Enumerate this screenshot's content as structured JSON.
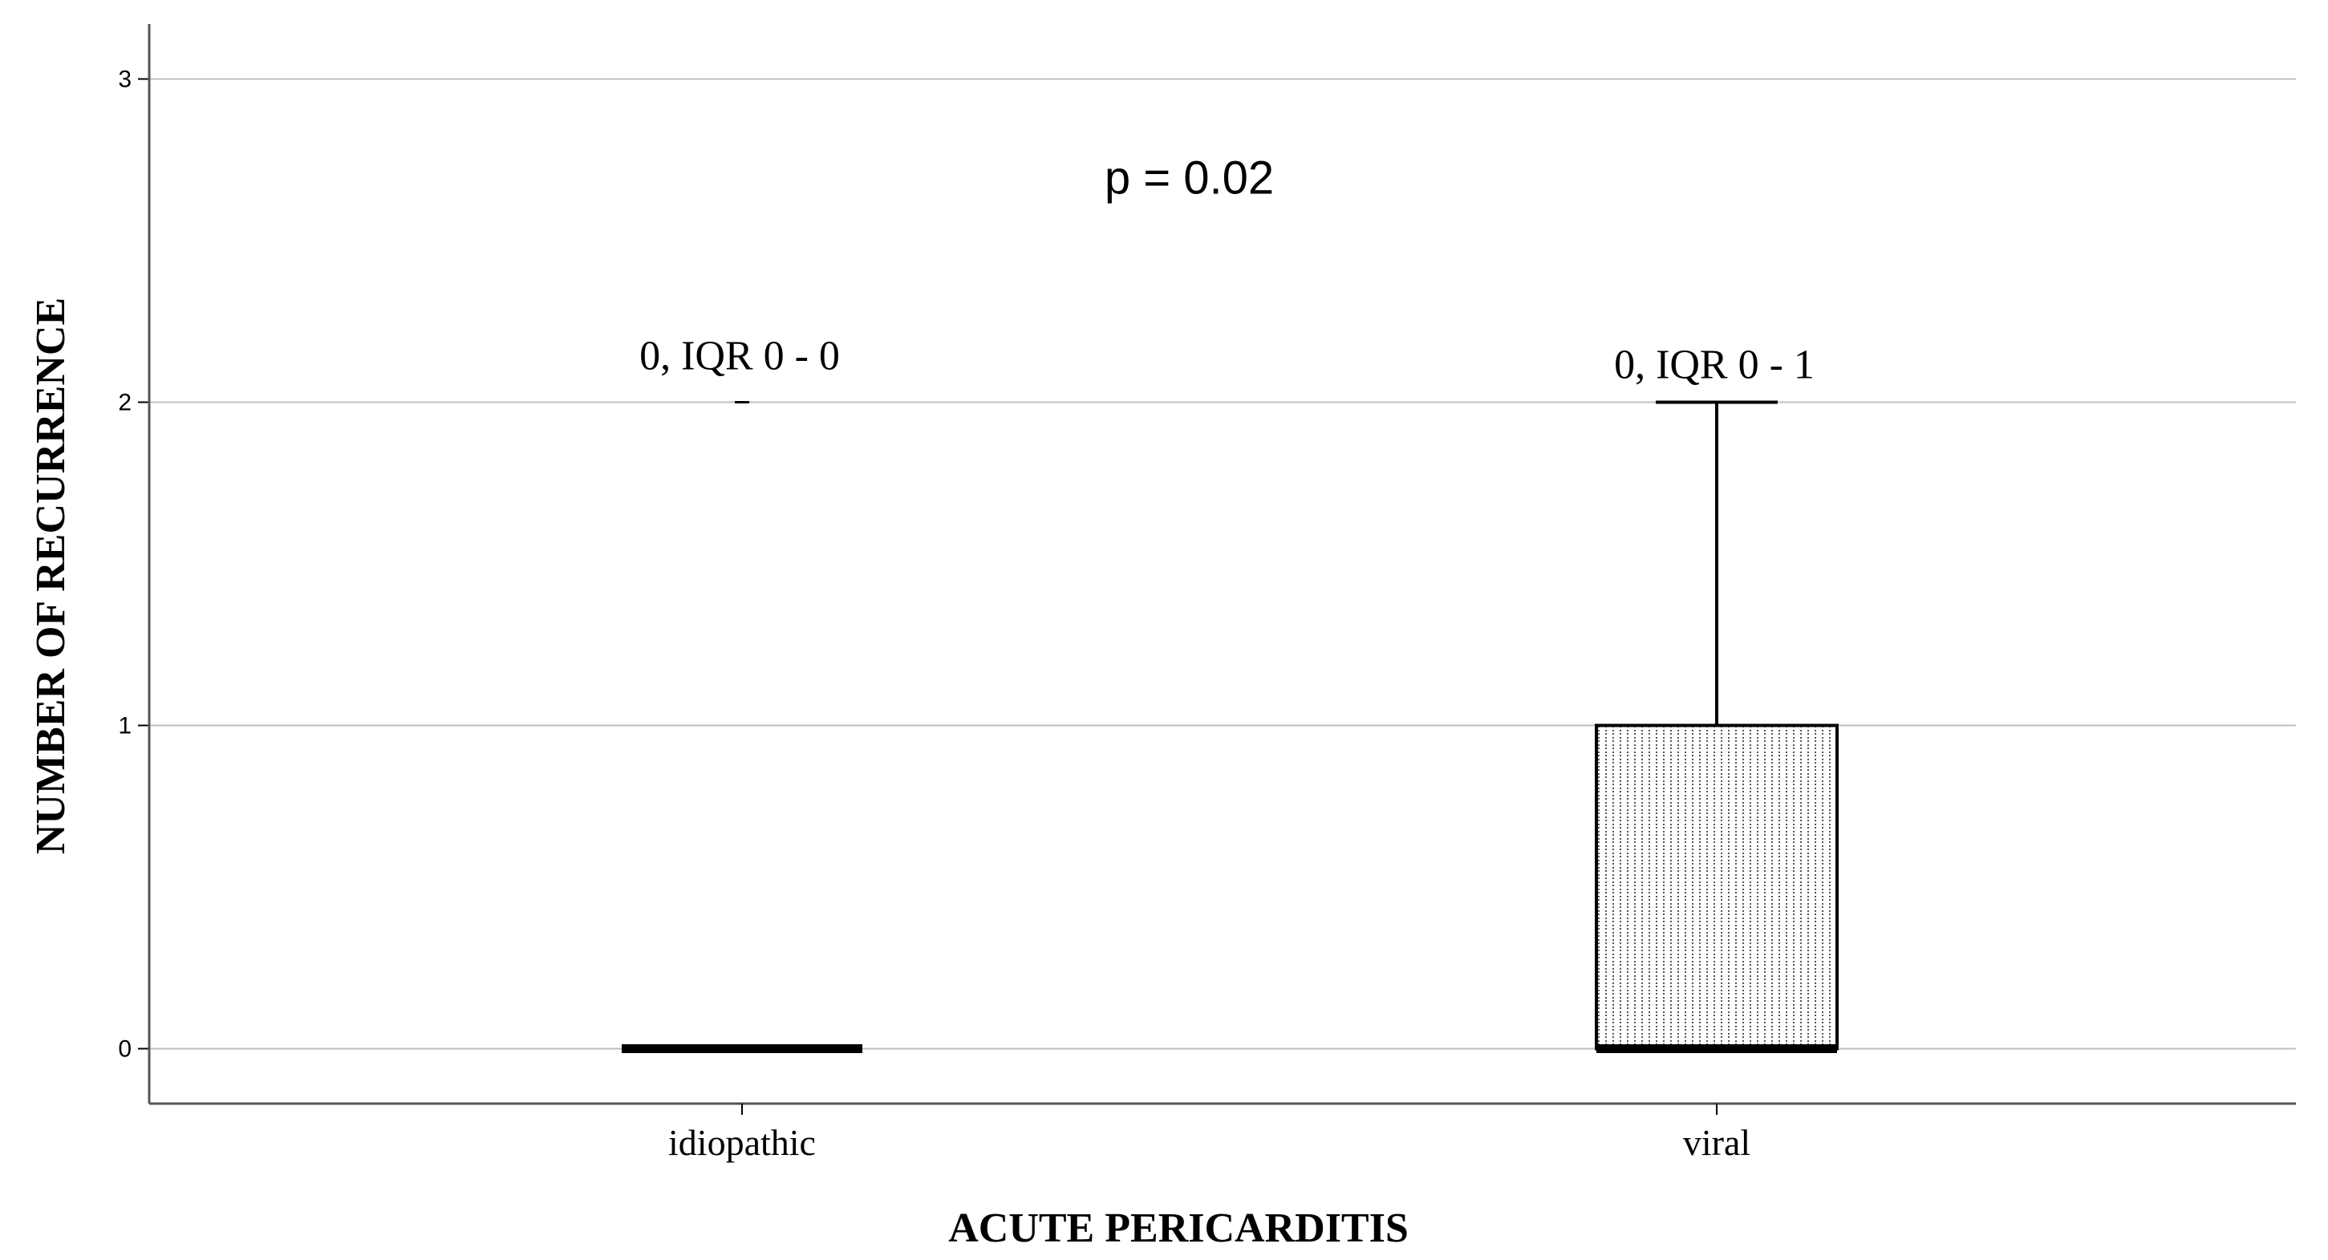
{
  "chart_data": {
    "type": "boxplot",
    "title": "",
    "xlabel": "ACUTE PERICARDITIS",
    "ylabel": "NUMBER OF RECURRENCE",
    "ylim": [
      -0.17,
      3.17
    ],
    "yticks": [
      0,
      1,
      2,
      3
    ],
    "grid": "horizontal",
    "categories": [
      "idiopathic",
      "viral"
    ],
    "boxes": [
      {
        "category": "idiopathic",
        "min": 0,
        "q1": 0,
        "median": 0,
        "q3": 0,
        "max": 0,
        "outliers": [
          2
        ],
        "annotation": "0, IQR 0 - 0"
      },
      {
        "category": "viral",
        "min": 0,
        "q1": 0,
        "median": 0,
        "q3": 1,
        "max": 2,
        "outliers": [],
        "annotation": "0, IQR 0 - 1"
      }
    ],
    "annotations": [
      {
        "text": "p = 0.02",
        "x_between": [
          "idiopathic",
          "viral"
        ],
        "y": 2.7
      }
    ],
    "box_fill": "#ffffff",
    "box_pattern": "dotted",
    "grid_color": "#bfbfbf",
    "line_color": "#000000"
  }
}
